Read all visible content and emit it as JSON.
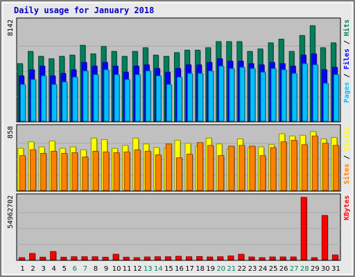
{
  "chart_data": {
    "type": "bar",
    "title": "Daily usage for January 2018",
    "days": [
      "1",
      "2",
      "3",
      "4",
      "5",
      "6",
      "7",
      "8",
      "9",
      "10",
      "11",
      "12",
      "13",
      "14",
      "15",
      "16",
      "17",
      "18",
      "19",
      "20",
      "21",
      "22",
      "23",
      "24",
      "25",
      "26",
      "27",
      "28",
      "29",
      "30",
      "31"
    ],
    "weekend_days": [
      6,
      7,
      13,
      14,
      20,
      21,
      27,
      28
    ],
    "colors": {
      "hits": "#00805c",
      "files": "#0000ff",
      "pages": "#00c0ff",
      "visits": "#ffff00",
      "sites": "#ff8000",
      "kbytes": "#ff0000",
      "title": "#0000c0",
      "weekday_label": "#000000",
      "weekend_label": "#00805c",
      "plot_bg": "#c0c0c0",
      "frame_bg": "#e8e8e8"
    },
    "panels": [
      {
        "id": "hits-files-pages",
        "max_label": "8142",
        "max": 8142,
        "legend": [
          {
            "text": "Pages",
            "color": "#00c0ff"
          },
          {
            "text": " / ",
            "color": "#000000"
          },
          {
            "text": "Files",
            "color": "#0000ff"
          },
          {
            "text": " / ",
            "color": "#000000"
          },
          {
            "text": "Hits",
            "color": "#00805c"
          }
        ],
        "series": [
          {
            "name": "Hits",
            "values": [
              4700,
              5700,
              5300,
              5100,
              5300,
              5400,
              6200,
              5500,
              6100,
              5700,
              5300,
              5700,
              6000,
              5400,
              5300,
              5600,
              5800,
              5800,
              6000,
              6500,
              6500,
              6500,
              5700,
              5900,
              6400,
              6700,
              5700,
              7000,
              7800,
              6000,
              6400
            ]
          },
          {
            "name": "Files",
            "values": [
              3700,
              4200,
              4500,
              3700,
              3900,
              4200,
              4800,
              4500,
              4800,
              4500,
              4000,
              4500,
              4600,
              4300,
              4000,
              4300,
              4600,
              4600,
              4800,
              5100,
              4900,
              4900,
              4700,
              4600,
              4800,
              4700,
              4500,
              5400,
              5500,
              4200,
              4400
            ]
          },
          {
            "name": "Pages",
            "values": [
              3000,
              3400,
              3700,
              3000,
              3200,
              3600,
              4100,
              3800,
              4200,
              3800,
              3400,
              3800,
              4100,
              3700,
              3000,
              3600,
              3900,
              3900,
              4100,
              4500,
              4300,
              4400,
              4300,
              4000,
              4300,
              4200,
              3900,
              4700,
              4600,
              3100,
              3800
            ]
          }
        ]
      },
      {
        "id": "visits-sites",
        "max_label": "858",
        "max": 858,
        "legend": [
          {
            "text": "Sites",
            "color": "#ff8000"
          },
          {
            "text": " / ",
            "color": "#000000"
          },
          {
            "text": "Visits",
            "color": "#ffff00"
          }
        ],
        "series": [
          {
            "name": "Visits",
            "values": [
              580,
              670,
              600,
              680,
              580,
              600,
              560,
              720,
              700,
              580,
              620,
              720,
              640,
              590,
              580,
              690,
              650,
              610,
              720,
              640,
              570,
              710,
              590,
              600,
              630,
              780,
              750,
              760,
              810,
              710,
              730
            ]
          },
          {
            "name": "Sites",
            "values": [
              480,
              560,
              510,
              540,
              510,
              520,
              460,
              540,
              530,
              520,
              530,
              560,
              540,
              490,
              640,
              450,
              500,
              660,
              620,
              480,
              610,
              620,
              610,
              480,
              590,
              670,
              690,
              630,
              750,
              650,
              620
            ]
          }
        ]
      },
      {
        "id": "kbytes",
        "max_label": "54962702",
        "max": 54962702,
        "legend": [
          {
            "text": "KBytes",
            "color": "#ff0000"
          }
        ],
        "series": [
          {
            "name": "KBytes",
            "values": [
              1800000,
              5500000,
              2200000,
              7200000,
              2200000,
              2600000,
              2600000,
              2600000,
              2200000,
              4800000,
              2200000,
              1800000,
              2400000,
              2600000,
              2600000,
              3000000,
              2600000,
              2800000,
              2400000,
              2600000,
              3300000,
              4800000,
              2400000,
              1800000,
              2400000,
              2400000,
              2400000,
              54962702,
              1800000,
              39000000,
              4200000
            ]
          }
        ]
      }
    ]
  }
}
